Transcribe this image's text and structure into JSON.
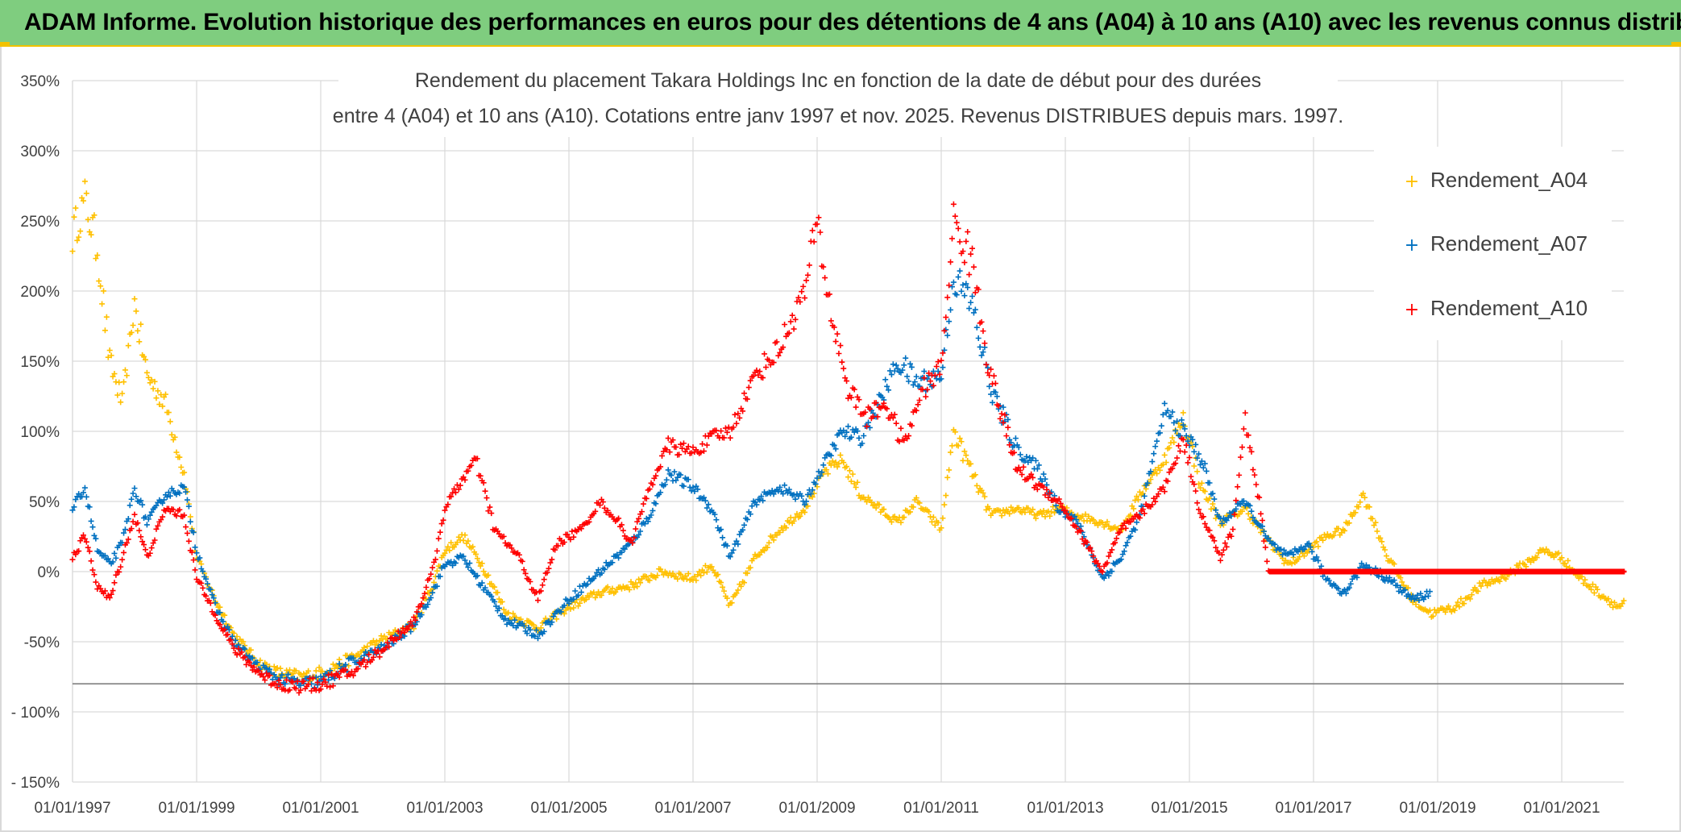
{
  "banner": {
    "title": "ADAM Informe. Evolution historique des performances en euros pour des détentions de 4 ans (A04) à 10 ans (A10) avec les revenus connus distribués"
  },
  "colors": {
    "banner_bg": "#7fcd7f",
    "accent": "#f2c200",
    "grid": "#d9d9d9",
    "text": "#404040"
  },
  "chart_data": {
    "type": "scatter",
    "title_lines": [
      "Rendement du placement Takara Holdings Inc en fonction de la date de début pour des durées",
      "entre 4 (A04) et 10 ans (A10). Cotations entre janv 1997 et nov. 2025. Revenus DISTRIBUES depuis mars. 1997."
    ],
    "xlabel": "",
    "ylabel": "",
    "x_range": [
      1997.0,
      2022.5
    ],
    "ylim": [
      -150,
      350
    ],
    "y_ticks": [
      350,
      300,
      250,
      200,
      150,
      100,
      50,
      0,
      -50,
      -100,
      -150
    ],
    "y_tick_labels": [
      "350%",
      "300%",
      "250%",
      "200%",
      "150%",
      "100%",
      "50%",
      "0%",
      "-50%",
      "- 100%",
      "- 150%"
    ],
    "x_ticks": [
      1997,
      1999,
      2001,
      2003,
      2005,
      2007,
      2009,
      2011,
      2013,
      2015,
      2017,
      2019,
      2021
    ],
    "x_tick_labels": [
      "01/01/1997",
      "01/01/1999",
      "01/01/2001",
      "01/01/2003",
      "01/01/2005",
      "01/01/2007",
      "01/01/2009",
      "01/01/2011",
      "01/01/2013",
      "01/01/2015",
      "01/01/2017",
      "01/01/2019",
      "01/01/2021"
    ],
    "grid": true,
    "legend_position": "top-right",
    "marker": "+",
    "series": [
      {
        "name": "Rendement_A04",
        "color": "#ffc000",
        "x": [
          1997.0,
          1997.2,
          1997.4,
          1997.6,
          1997.8,
          1998.0,
          1998.2,
          1998.5,
          1998.8,
          1999.0,
          1999.3,
          1999.6,
          2000.0,
          2000.3,
          2000.7,
          2001.0,
          2001.5,
          2002.0,
          2002.5,
          2002.8,
          2003.0,
          2003.3,
          2003.6,
          2004.0,
          2004.5,
          2005.0,
          2005.5,
          2006.0,
          2006.5,
          2007.0,
          2007.3,
          2007.6,
          2008.0,
          2008.4,
          2008.8,
          2009.1,
          2009.4,
          2009.7,
          2010.0,
          2010.3,
          2010.6,
          2011.0,
          2011.2,
          2011.5,
          2011.8,
          2012.2,
          2012.6,
          2012.9,
          2013.2,
          2013.6,
          2013.9,
          2014.2,
          2014.6,
          2014.9,
          2015.2,
          2015.5,
          2015.9,
          2016.3,
          2016.6,
          2016.9,
          2017.2,
          2017.5,
          2017.8,
          2018.2,
          2018.6,
          2018.9,
          2019.3,
          2019.7,
          2020.0,
          2020.4,
          2020.7,
          2021.0,
          2021.3,
          2021.6,
          2021.9,
          2022.2,
          2022.5
        ],
        "values": [
          240,
          265,
          230,
          150,
          120,
          190,
          140,
          120,
          70,
          10,
          -20,
          -45,
          -65,
          -72,
          -75,
          -72,
          -62,
          -48,
          -38,
          -10,
          15,
          25,
          5,
          -30,
          -40,
          -25,
          -15,
          -10,
          0,
          -5,
          5,
          -25,
          10,
          30,
          45,
          70,
          80,
          55,
          45,
          35,
          50,
          30,
          100,
          70,
          40,
          45,
          40,
          45,
          40,
          35,
          30,
          55,
          80,
          110,
          60,
          35,
          45,
          20,
          5,
          15,
          25,
          30,
          55,
          10,
          -20,
          -30,
          -25,
          -10,
          -5,
          5,
          15,
          10,
          -5,
          -15,
          -25,
          -20,
          -15
        ]
      },
      {
        "name": "Rendement_A07",
        "color": "#0070c0",
        "x": [
          1997.0,
          1997.2,
          1997.4,
          1997.6,
          1997.8,
          1998.0,
          1998.2,
          1998.5,
          1998.8,
          1999.0,
          1999.3,
          1999.6,
          2000.0,
          2000.3,
          2000.7,
          2001.0,
          2001.5,
          2002.0,
          2002.5,
          2002.8,
          2003.0,
          2003.3,
          2003.6,
          2004.0,
          2004.5,
          2005.0,
          2005.5,
          2006.0,
          2006.3,
          2006.6,
          2007.0,
          2007.3,
          2007.6,
          2008.0,
          2008.4,
          2008.8,
          2009.1,
          2009.4,
          2009.7,
          2010.0,
          2010.3,
          2010.6,
          2011.0,
          2011.2,
          2011.5,
          2011.8,
          2012.2,
          2012.6,
          2012.9,
          2013.2,
          2013.6,
          2013.9,
          2014.2,
          2014.6,
          2014.9,
          2015.2,
          2015.5,
          2015.9,
          2016.3,
          2016.6,
          2016.9,
          2017.2,
          2017.5,
          2017.8,
          2018.2,
          2018.6,
          2018.9
        ],
        "values": [
          45,
          60,
          15,
          5,
          20,
          60,
          35,
          55,
          60,
          15,
          -25,
          -50,
          -68,
          -76,
          -80,
          -78,
          -65,
          -55,
          -38,
          -15,
          5,
          10,
          -10,
          -35,
          -45,
          -20,
          0,
          20,
          40,
          70,
          60,
          45,
          10,
          50,
          60,
          50,
          75,
          100,
          95,
          120,
          150,
          135,
          140,
          210,
          190,
          130,
          90,
          70,
          45,
          35,
          -5,
          10,
          40,
          115,
          100,
          80,
          35,
          50,
          20,
          10,
          20,
          -5,
          -15,
          5,
          -5,
          -20,
          -15
        ]
      },
      {
        "name": "Rendement_A10",
        "color": "#ff0000",
        "x": [
          1997.0,
          1997.2,
          1997.4,
          1997.6,
          1997.8,
          1998.0,
          1998.2,
          1998.5,
          1998.8,
          1999.0,
          1999.3,
          1999.6,
          2000.0,
          2000.3,
          2000.7,
          2001.0,
          2001.5,
          2002.0,
          2002.5,
          2002.8,
          2003.0,
          2003.2,
          2003.5,
          2003.8,
          2004.2,
          2004.5,
          2004.8,
          2005.2,
          2005.5,
          2005.8,
          2006.0,
          2006.3,
          2006.6,
          2007.0,
          2007.3,
          2007.6,
          2008.0,
          2008.4,
          2008.8,
          2009.0,
          2009.2,
          2009.5,
          2009.8,
          2010.1,
          2010.4,
          2010.7,
          2011.0,
          2011.2,
          2011.5,
          2011.8,
          2012.2,
          2012.6,
          2012.9,
          2013.2,
          2013.6,
          2013.9,
          2014.2,
          2014.6,
          2014.9,
          2015.2,
          2015.5,
          2015.7,
          2015.9,
          2016.3,
          2017.0,
          2018.0,
          2019.0,
          2020.0,
          2021.0,
          2022.5
        ],
        "values": [
          10,
          25,
          -10,
          -20,
          10,
          40,
          10,
          45,
          40,
          -5,
          -30,
          -55,
          -72,
          -80,
          -82,
          -80,
          -72,
          -55,
          -35,
          0,
          45,
          60,
          80,
          30,
          10,
          -20,
          20,
          30,
          50,
          35,
          20,
          60,
          90,
          85,
          95,
          100,
          140,
          160,
          200,
          250,
          190,
          130,
          110,
          120,
          90,
          130,
          145,
          250,
          220,
          140,
          75,
          60,
          50,
          30,
          0,
          30,
          40,
          60,
          95,
          40,
          10,
          30,
          110,
          0,
          0,
          0,
          0,
          0,
          0,
          0
        ]
      }
    ]
  }
}
